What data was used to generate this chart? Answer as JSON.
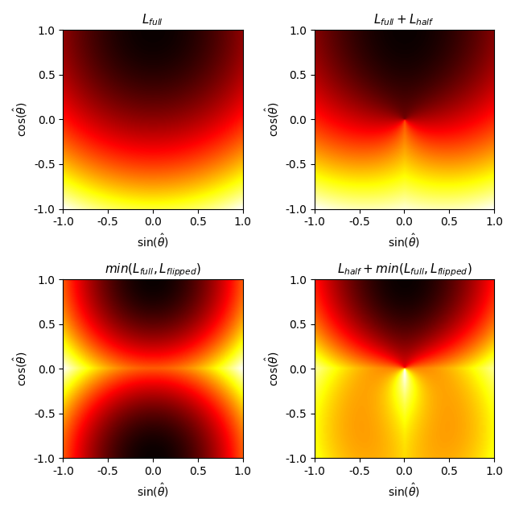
{
  "titles": [
    "$L_{full}$",
    "$L_{full} + L_{half}$",
    "$min(L_{full}, L_{flipped})$",
    "$L_{half} + min(L_{full}, L_{flipped})$"
  ],
  "xlabel": "$\\sin(\\hat{\\theta})$",
  "ylabel": "$\\cos(\\hat{\\theta})$",
  "xlim": [
    -1.0,
    1.0
  ],
  "ylim": [
    -1.0,
    1.0
  ],
  "xticks": [
    -1.0,
    -0.5,
    0.0,
    0.5,
    1.0
  ],
  "yticks": [
    -1.0,
    -0.5,
    0.0,
    0.5,
    1.0
  ],
  "xtick_labels": [
    "-1.0",
    "-0.5",
    "0.0",
    "0.5",
    "1.0"
  ],
  "ytick_labels": [
    "-1.0",
    "-0.5",
    "0.0",
    "0.5",
    "1.0"
  ],
  "n_grid": 500,
  "colormap": "hot",
  "figsize": [
    6.4,
    6.35
  ],
  "dpi": 100,
  "title_fontsize": 11,
  "label_fontsize": 10
}
